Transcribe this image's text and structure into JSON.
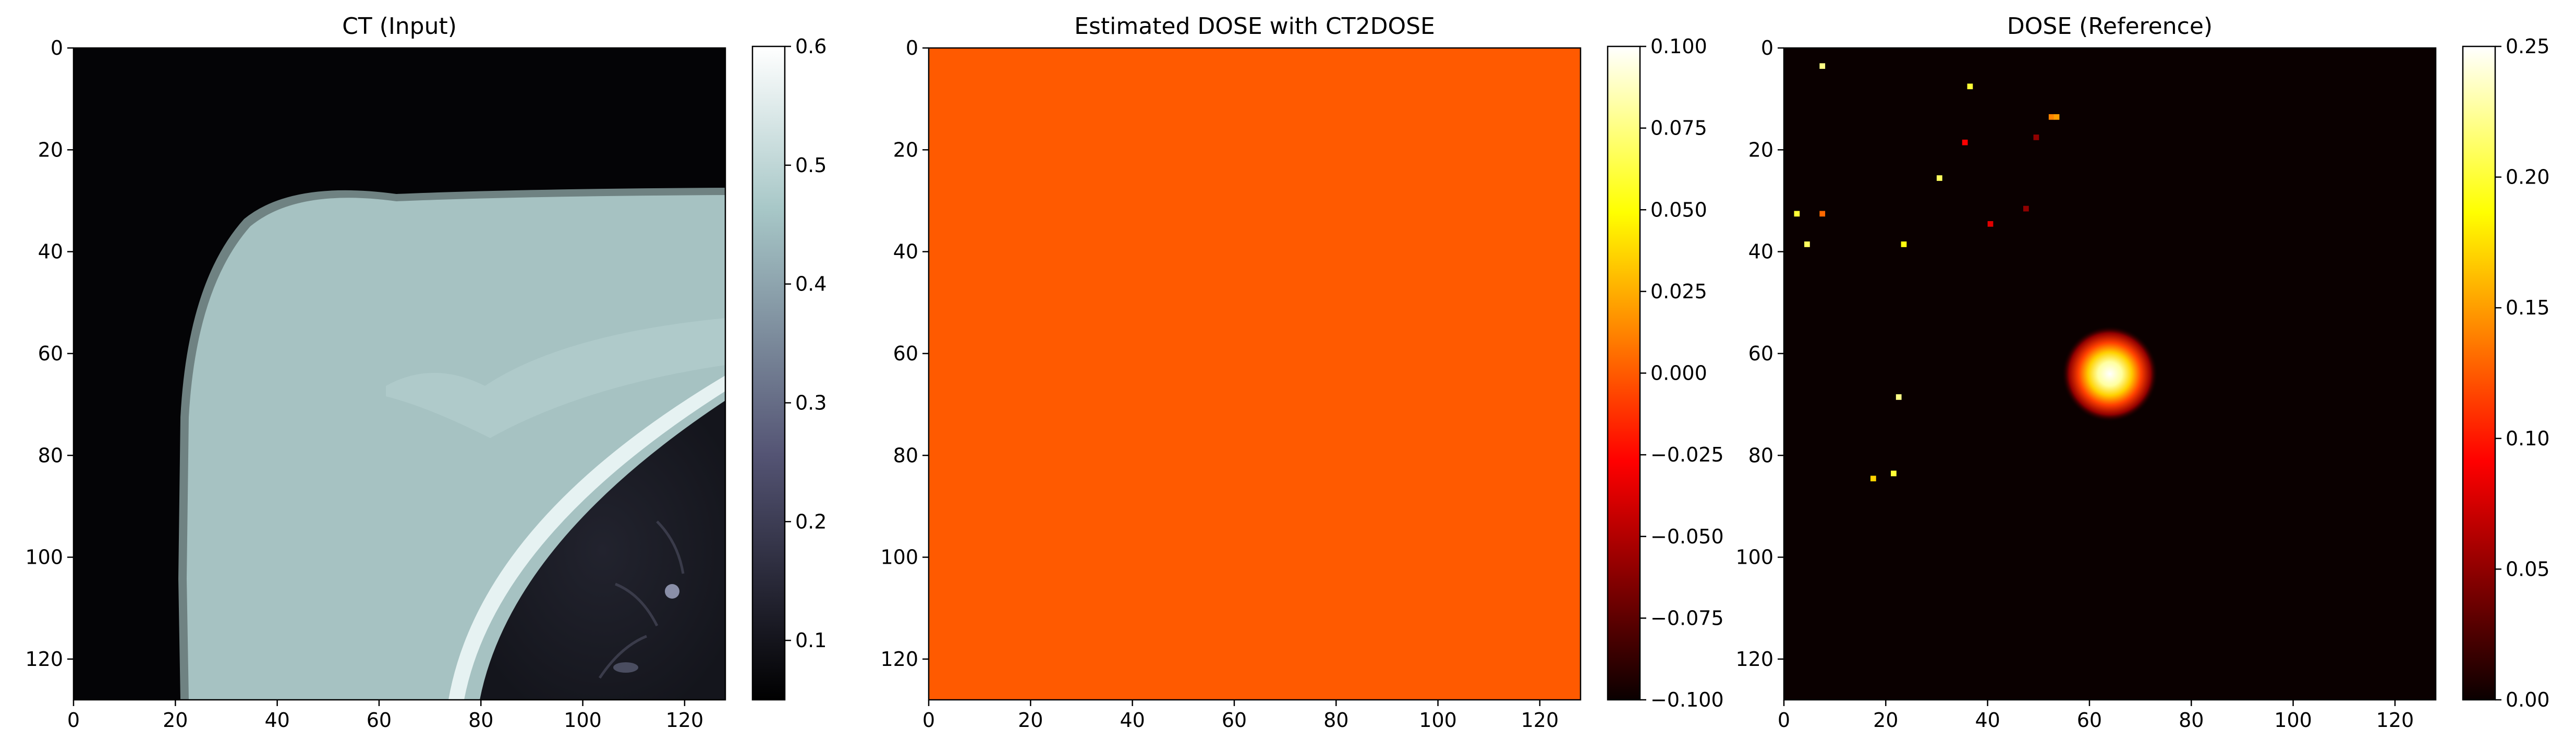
{
  "chart_data": [
    {
      "type": "heatmap",
      "title": "CT (Input)",
      "xlabel": "",
      "ylabel": "",
      "xlim": [
        0,
        128
      ],
      "ylim": [
        128,
        0
      ],
      "x_ticks": [
        "0",
        "20",
        "40",
        "60",
        "80",
        "100",
        "120"
      ],
      "y_ticks": [
        "0",
        "20",
        "40",
        "60",
        "80",
        "100",
        "120"
      ],
      "colormap": "bone",
      "colorbar": {
        "range": [
          0.05,
          0.6
        ],
        "ticks": [
          "0.1",
          "0.2",
          "0.3",
          "0.4",
          "0.5",
          "0.6"
        ],
        "tick_values": [
          0.1,
          0.2,
          0.3,
          0.4,
          0.5,
          0.6
        ]
      },
      "description_regions": {
        "background_value": 0.05,
        "tissue_value": 0.48,
        "lung_value": 0.12
      }
    },
    {
      "type": "heatmap",
      "title": "Estimated DOSE with CT2DOSE",
      "xlabel": "",
      "ylabel": "",
      "xlim": [
        0,
        128
      ],
      "ylim": [
        128,
        0
      ],
      "x_ticks": [
        "0",
        "20",
        "40",
        "60",
        "80",
        "100",
        "120"
      ],
      "y_ticks": [
        "0",
        "20",
        "40",
        "60",
        "80",
        "100",
        "120"
      ],
      "colormap": "hot",
      "uniform_value": 0.0,
      "uniform_color": "#ff5a00",
      "colorbar": {
        "range": [
          -0.1,
          0.1
        ],
        "ticks": [
          "−0.100",
          "−0.075",
          "−0.050",
          "−0.025",
          "0.000",
          "0.025",
          "0.050",
          "0.075",
          "0.100"
        ],
        "tick_values": [
          -0.1,
          -0.075,
          -0.05,
          -0.025,
          0.0,
          0.025,
          0.05,
          0.075,
          0.1
        ]
      }
    },
    {
      "type": "heatmap",
      "title": "DOSE (Reference)",
      "xlabel": "",
      "ylabel": "",
      "xlim": [
        0,
        128
      ],
      "ylim": [
        128,
        0
      ],
      "x_ticks": [
        "0",
        "20",
        "40",
        "60",
        "80",
        "100",
        "120"
      ],
      "y_ticks": [
        "0",
        "20",
        "40",
        "60",
        "80",
        "100",
        "120"
      ],
      "colormap": "hot",
      "colorbar": {
        "range": [
          0.0,
          0.25
        ],
        "ticks": [
          "0.00",
          "0.05",
          "0.10",
          "0.15",
          "0.20",
          "0.25"
        ],
        "tick_values": [
          0.0,
          0.05,
          0.1,
          0.15,
          0.2,
          0.25
        ]
      },
      "hotspot": {
        "x": 64,
        "y": 64,
        "peak": 0.25
      },
      "isolated_voxels": [
        {
          "x": 7,
          "y": 3,
          "v": 0.22
        },
        {
          "x": 36,
          "y": 7,
          "v": 0.2
        },
        {
          "x": 52,
          "y": 13,
          "v": 0.14
        },
        {
          "x": 53,
          "y": 13,
          "v": 0.15
        },
        {
          "x": 49,
          "y": 17,
          "v": 0.05
        },
        {
          "x": 35,
          "y": 18,
          "v": 0.09
        },
        {
          "x": 30,
          "y": 25,
          "v": 0.21
        },
        {
          "x": 47,
          "y": 31,
          "v": 0.05
        },
        {
          "x": 2,
          "y": 32,
          "v": 0.2
        },
        {
          "x": 7,
          "y": 32,
          "v": 0.13
        },
        {
          "x": 40,
          "y": 34,
          "v": 0.08
        },
        {
          "x": 4,
          "y": 38,
          "v": 0.21
        },
        {
          "x": 23,
          "y": 38,
          "v": 0.19
        },
        {
          "x": 22,
          "y": 68,
          "v": 0.22
        },
        {
          "x": 21,
          "y": 83,
          "v": 0.2
        },
        {
          "x": 17,
          "y": 84,
          "v": 0.17
        },
        {
          "x": 60,
          "y": 60,
          "v": 0.25
        }
      ]
    }
  ]
}
